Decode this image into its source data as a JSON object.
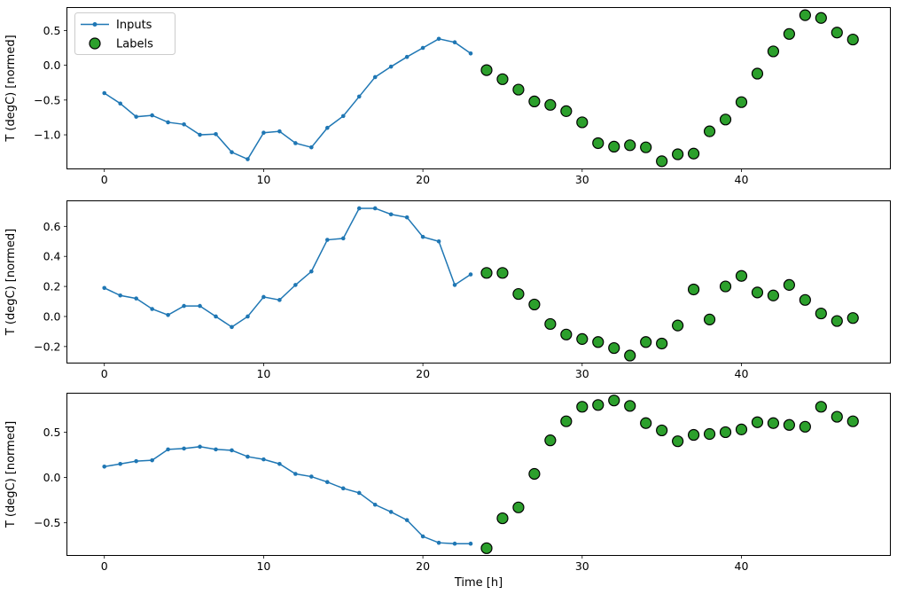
{
  "figure": {
    "xlabel": "Time [h]",
    "ylabel": "T (degC) [normed]",
    "legend": {
      "inputs": "Inputs",
      "labels": "Labels"
    },
    "colors": {
      "inputs": "#1f77b4",
      "labels": "#2ca02c",
      "label_edge": "#000000",
      "axis": "#000000",
      "background": "#ffffff",
      "legend_border": "#cccccc"
    }
  },
  "chart_data": [
    {
      "type": "line",
      "title": "",
      "ylabel": "T (degC) [normed]",
      "xlim": [
        -2.35,
        49.35
      ],
      "ylim": [
        -1.49,
        0.83
      ],
      "xticks": [
        0,
        10,
        20,
        30,
        40
      ],
      "yticks": [
        -1.0,
        -0.5,
        0.0,
        0.5
      ],
      "grid": false,
      "legend_position": "upper left",
      "series": [
        {
          "name": "Inputs",
          "type": "line",
          "marker": "dot",
          "x": [
            0,
            1,
            2,
            3,
            4,
            5,
            6,
            7,
            8,
            9,
            10,
            11,
            12,
            13,
            14,
            15,
            16,
            17,
            18,
            19,
            20,
            21,
            22,
            23
          ],
          "y": [
            -0.4,
            -0.55,
            -0.74,
            -0.72,
            -0.82,
            -0.85,
            -1.0,
            -0.99,
            -1.25,
            -1.35,
            -0.97,
            -0.95,
            -1.12,
            -1.18,
            -0.9,
            -0.73,
            -0.45,
            -0.17,
            -0.02,
            0.12,
            0.25,
            0.38,
            0.33,
            0.17
          ]
        },
        {
          "name": "Labels",
          "type": "scatter",
          "marker": "circle",
          "x": [
            24,
            25,
            26,
            27,
            28,
            29,
            30,
            31,
            32,
            33,
            34,
            35,
            36,
            37,
            38,
            39,
            40,
            41,
            42,
            43,
            44,
            45,
            46,
            47
          ],
          "y": [
            -0.07,
            -0.2,
            -0.35,
            -0.52,
            -0.57,
            -0.66,
            -0.82,
            -1.12,
            -1.17,
            -1.15,
            -1.18,
            -1.38,
            -1.28,
            -1.27,
            -0.95,
            -0.78,
            -0.53,
            -0.12,
            0.2,
            0.45,
            0.72,
            0.68,
            0.47,
            0.37
          ]
        }
      ]
    },
    {
      "type": "line",
      "title": "",
      "ylabel": "T (degC) [normed]",
      "xlim": [
        -2.35,
        49.35
      ],
      "ylim": [
        -0.31,
        0.77
      ],
      "xticks": [
        0,
        10,
        20,
        30,
        40
      ],
      "yticks": [
        -0.2,
        0.0,
        0.2,
        0.4,
        0.6
      ],
      "grid": false,
      "series": [
        {
          "name": "Inputs",
          "type": "line",
          "marker": "dot",
          "x": [
            0,
            1,
            2,
            3,
            4,
            5,
            6,
            7,
            8,
            9,
            10,
            11,
            12,
            13,
            14,
            15,
            16,
            17,
            18,
            19,
            20,
            21,
            22,
            23
          ],
          "y": [
            0.19,
            0.14,
            0.12,
            0.05,
            0.01,
            0.07,
            0.07,
            0.0,
            -0.07,
            0.0,
            0.13,
            0.11,
            0.21,
            0.3,
            0.51,
            0.52,
            0.72,
            0.72,
            0.68,
            0.66,
            0.53,
            0.5,
            0.21,
            0.28
          ]
        },
        {
          "name": "Labels",
          "type": "scatter",
          "marker": "circle",
          "x": [
            24,
            25,
            26,
            27,
            28,
            29,
            30,
            31,
            32,
            33,
            34,
            35,
            36,
            37,
            38,
            39,
            40,
            41,
            42,
            43,
            44,
            45,
            46,
            47
          ],
          "y": [
            0.29,
            0.29,
            0.15,
            0.08,
            -0.05,
            -0.12,
            -0.15,
            -0.17,
            -0.21,
            -0.26,
            -0.17,
            -0.18,
            -0.06,
            0.18,
            -0.02,
            0.2,
            0.27,
            0.16,
            0.14,
            0.21,
            0.11,
            0.02,
            -0.03,
            -0.01
          ]
        }
      ]
    },
    {
      "type": "line",
      "title": "",
      "ylabel": "T (degC) [normed]",
      "xlabel": "Time [h]",
      "xlim": [
        -2.35,
        49.35
      ],
      "ylim": [
        -0.86,
        0.93
      ],
      "xticks": [
        0,
        10,
        20,
        30,
        40
      ],
      "yticks": [
        -0.5,
        0.0,
        0.5
      ],
      "grid": false,
      "series": [
        {
          "name": "Inputs",
          "type": "line",
          "marker": "dot",
          "x": [
            0,
            1,
            2,
            3,
            4,
            5,
            6,
            7,
            8,
            9,
            10,
            11,
            12,
            13,
            14,
            15,
            16,
            17,
            18,
            19,
            20,
            21,
            22,
            23
          ],
          "y": [
            0.12,
            0.15,
            0.18,
            0.19,
            0.31,
            0.32,
            0.34,
            0.31,
            0.3,
            0.23,
            0.2,
            0.15,
            0.04,
            0.01,
            -0.05,
            -0.12,
            -0.17,
            -0.3,
            -0.38,
            -0.47,
            -0.65,
            -0.72,
            -0.73,
            -0.73
          ]
        },
        {
          "name": "Labels",
          "type": "scatter",
          "marker": "circle",
          "x": [
            24,
            25,
            26,
            27,
            28,
            29,
            30,
            31,
            32,
            33,
            34,
            35,
            36,
            37,
            38,
            39,
            40,
            41,
            42,
            43,
            44,
            45,
            46,
            47
          ],
          "y": [
            -0.78,
            -0.45,
            -0.33,
            0.04,
            0.41,
            0.62,
            0.78,
            0.8,
            0.85,
            0.79,
            0.6,
            0.52,
            0.4,
            0.47,
            0.48,
            0.5,
            0.53,
            0.61,
            0.6,
            0.58,
            0.56,
            0.78,
            0.67,
            0.62
          ]
        }
      ]
    }
  ]
}
